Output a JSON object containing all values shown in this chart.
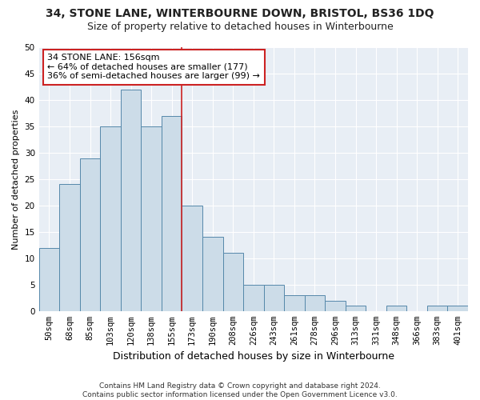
{
  "title1": "34, STONE LANE, WINTERBOURNE DOWN, BRISTOL, BS36 1DQ",
  "title2": "Size of property relative to detached houses in Winterbourne",
  "xlabel": "Distribution of detached houses by size in Winterbourne",
  "ylabel": "Number of detached properties",
  "footnote": "Contains HM Land Registry data © Crown copyright and database right 2024.\nContains public sector information licensed under the Open Government Licence v3.0.",
  "categories": [
    "50sqm",
    "68sqm",
    "85sqm",
    "103sqm",
    "120sqm",
    "138sqm",
    "155sqm",
    "173sqm",
    "190sqm",
    "208sqm",
    "226sqm",
    "243sqm",
    "261sqm",
    "278sqm",
    "296sqm",
    "313sqm",
    "331sqm",
    "348sqm",
    "366sqm",
    "383sqm",
    "401sqm"
  ],
  "values": [
    12,
    24,
    29,
    35,
    42,
    35,
    37,
    20,
    14,
    11,
    5,
    5,
    3,
    3,
    2,
    1,
    0,
    1,
    0,
    1,
    1
  ],
  "bar_color": "#ccdce8",
  "bar_edge_color": "#5588aa",
  "vline_x": 6.5,
  "vline_color": "#cc2222",
  "annotation_text": "34 STONE LANE: 156sqm\n← 64% of detached houses are smaller (177)\n36% of semi-detached houses are larger (99) →",
  "annotation_box_color": "#ffffff",
  "annotation_box_edge_color": "#cc2222",
  "ylim": [
    0,
    50
  ],
  "yticks": [
    0,
    5,
    10,
    15,
    20,
    25,
    30,
    35,
    40,
    45,
    50
  ],
  "background_color": "#e8eef5",
  "grid_color": "#ffffff",
  "fig_background": "#ffffff",
  "title1_fontsize": 10,
  "title2_fontsize": 9,
  "xlabel_fontsize": 9,
  "ylabel_fontsize": 8,
  "tick_fontsize": 7.5,
  "annotation_fontsize": 8
}
